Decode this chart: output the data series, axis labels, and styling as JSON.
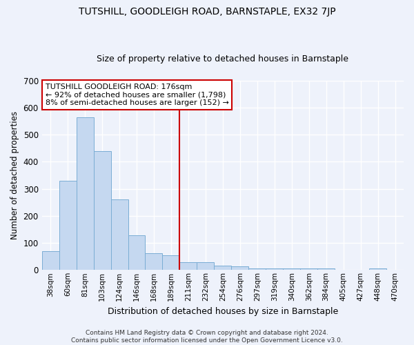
{
  "title": "TUTSHILL, GOODLEIGH ROAD, BARNSTAPLE, EX32 7JP",
  "subtitle": "Size of property relative to detached houses in Barnstaple",
  "xlabel": "Distribution of detached houses by size in Barnstaple",
  "ylabel": "Number of detached properties",
  "categories": [
    "38sqm",
    "60sqm",
    "81sqm",
    "103sqm",
    "124sqm",
    "146sqm",
    "168sqm",
    "189sqm",
    "211sqm",
    "232sqm",
    "254sqm",
    "276sqm",
    "297sqm",
    "319sqm",
    "340sqm",
    "362sqm",
    "384sqm",
    "405sqm",
    "427sqm",
    "448sqm",
    "470sqm"
  ],
  "values": [
    70,
    330,
    565,
    440,
    260,
    128,
    63,
    53,
    28,
    28,
    16,
    13,
    5,
    5,
    5,
    5,
    5,
    0,
    0,
    5,
    0
  ],
  "bar_color": "#c5d8f0",
  "bar_edge_color": "#7aadd4",
  "vline_x": 7.5,
  "vline_color": "#cc0000",
  "annotation_text": "TUTSHILL GOODLEIGH ROAD: 176sqm\n← 92% of detached houses are smaller (1,798)\n8% of semi-detached houses are larger (152) →",
  "annotation_box_color": "#ffffff",
  "annotation_box_edge_color": "#cc0000",
  "ylim": [
    0,
    700
  ],
  "yticks": [
    0,
    100,
    200,
    300,
    400,
    500,
    600,
    700
  ],
  "background_color": "#eef2fb",
  "grid_color": "#ffffff",
  "footer": "Contains HM Land Registry data © Crown copyright and database right 2024.\nContains public sector information licensed under the Open Government Licence v3.0."
}
